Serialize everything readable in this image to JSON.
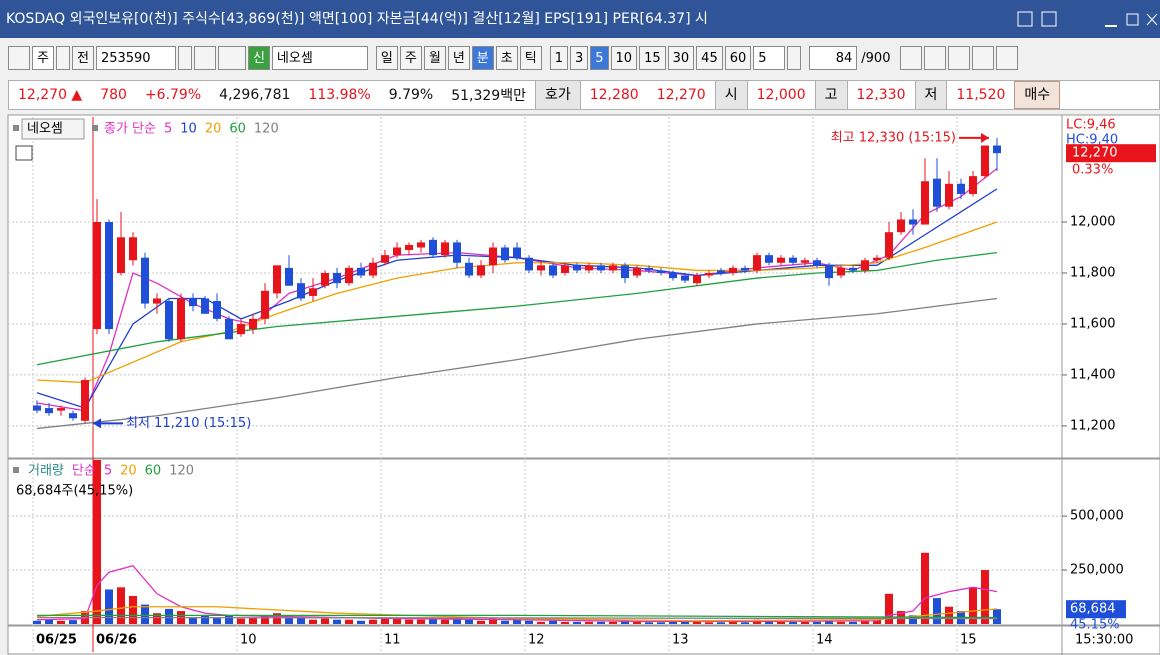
{
  "title_bar": {
    "text": "KOSDAQ 외국인보유[0(천)] 주식수[43,869(천)] 액면[100] 자본금[44(억)] 결산[12월] EPS[191] PER[64.37] 시"
  },
  "toolbar": {
    "market": "주",
    "kind": "전",
    "code": "253590",
    "badge": "신",
    "name": "네오셈",
    "periods": [
      "일",
      "주",
      "월",
      "년",
      "분",
      "초",
      "틱"
    ],
    "active_period": 4,
    "intervals": [
      "1",
      "3",
      "5",
      "10",
      "15",
      "30",
      "45",
      "60"
    ],
    "active_interval": 2,
    "multiplier": "5",
    "shown": "84",
    "total": "/900"
  },
  "quote": {
    "items": [
      {
        "text": "12,270 ▲",
        "kind": "up"
      },
      {
        "text": "780",
        "kind": "up"
      },
      {
        "text": "+6.79%",
        "kind": "up"
      },
      {
        "text": "4,296,781",
        "kind": "plain"
      },
      {
        "text": "113.98%",
        "kind": "up"
      },
      {
        "text": "9.79%",
        "kind": "plain"
      },
      {
        "text": "51,329백만",
        "kind": "plain"
      },
      {
        "text": "호가",
        "kind": "label"
      },
      {
        "text": "12,280",
        "kind": "up"
      },
      {
        "text": "12,270",
        "kind": "up"
      },
      {
        "text": "시",
        "kind": "label"
      },
      {
        "text": "12,000",
        "kind": "up"
      },
      {
        "text": "고",
        "kind": "label"
      },
      {
        "text": "12,330",
        "kind": "up"
      },
      {
        "text": "저",
        "kind": "label"
      },
      {
        "text": "11,520",
        "kind": "up"
      },
      {
        "text": "매수",
        "kind": "button"
      }
    ]
  },
  "chart_data": [
    {
      "type": "candlestick",
      "panel_label": "네오셈",
      "legend_prefix": "종가 단순",
      "up_color": "#e8141c",
      "down_color": "#1f4fd8",
      "categories": [
        "06/25",
        null,
        null,
        null,
        null,
        "06/26",
        null,
        null,
        null,
        null,
        null,
        null,
        null,
        null,
        null,
        null,
        null,
        "10",
        null,
        null,
        null,
        null,
        null,
        null,
        null,
        null,
        null,
        null,
        null,
        "11",
        null,
        null,
        null,
        null,
        null,
        null,
        null,
        null,
        null,
        null,
        null,
        "12",
        null,
        null,
        null,
        null,
        null,
        null,
        null,
        null,
        null,
        null,
        null,
        "13",
        null,
        null,
        null,
        null,
        null,
        null,
        null,
        null,
        null,
        null,
        null,
        "14",
        null,
        null,
        null,
        null,
        null,
        null,
        null,
        null,
        null,
        null,
        null,
        "15",
        null,
        null,
        null
      ],
      "open": [
        11280,
        11270,
        11260,
        11250,
        11220,
        11580,
        12000,
        11800,
        11850,
        11860,
        11680,
        11690,
        11540,
        11700,
        11700,
        11690,
        11620,
        11560,
        11580,
        11620,
        11720,
        11820,
        11760,
        11710,
        11750,
        11800,
        11760,
        11820,
        11790,
        11840,
        11870,
        11890,
        11900,
        11930,
        11870,
        11920,
        11840,
        11790,
        11830,
        11900,
        11900,
        11860,
        11810,
        11830,
        11800,
        11830,
        11810,
        11830,
        11810,
        11830,
        11790,
        11820,
        11810,
        11800,
        11790,
        11760,
        11790,
        11810,
        11800,
        11820,
        11810,
        11870,
        11840,
        11860,
        11840,
        11850,
        11830,
        11790,
        11820,
        11810,
        11850,
        11860,
        11960,
        12010,
        11990,
        12170,
        12060,
        12150,
        12110,
        12180,
        12300
      ],
      "high": [
        11300,
        11290,
        11280,
        11260,
        11390,
        12090,
        12010,
        12040,
        11960,
        11880,
        11720,
        11700,
        11720,
        11720,
        11710,
        11720,
        11630,
        11620,
        11640,
        11760,
        11830,
        11870,
        11780,
        11780,
        11810,
        11820,
        11830,
        11840,
        11860,
        11890,
        11920,
        11920,
        11930,
        11940,
        11930,
        11930,
        11860,
        11850,
        11920,
        11910,
        11920,
        11870,
        11850,
        11840,
        11840,
        11840,
        11840,
        11840,
        11840,
        11840,
        11830,
        11830,
        11820,
        11810,
        11800,
        11800,
        11810,
        11820,
        11830,
        11830,
        11880,
        11880,
        11870,
        11870,
        11860,
        11860,
        11840,
        11830,
        11830,
        11860,
        11870,
        12000,
        12040,
        12050,
        12250,
        12250,
        12200,
        12170,
        12200,
        12300,
        12330
      ],
      "low": [
        11250,
        11240,
        11240,
        11220,
        11210,
        11560,
        11560,
        11790,
        11830,
        11660,
        11640,
        11530,
        11530,
        11650,
        11640,
        11610,
        11540,
        11550,
        11560,
        11600,
        11700,
        11750,
        11690,
        11690,
        11740,
        11740,
        11750,
        11780,
        11780,
        11830,
        11860,
        11870,
        11880,
        11860,
        11860,
        11820,
        11780,
        11780,
        11800,
        11840,
        11850,
        11800,
        11790,
        11780,
        11790,
        11800,
        11800,
        11800,
        11800,
        11760,
        11780,
        11800,
        11790,
        11770,
        11760,
        11750,
        11780,
        11790,
        11790,
        11800,
        11800,
        11830,
        11830,
        11830,
        11830,
        11820,
        11750,
        11780,
        11800,
        11800,
        11840,
        11850,
        11950,
        11950,
        11990,
        12040,
        12050,
        12090,
        12100,
        12170,
        12200
      ],
      "close": [
        11260,
        11250,
        11270,
        11230,
        11380,
        12000,
        11580,
        11940,
        11940,
        11680,
        11700,
        11540,
        11700,
        11670,
        11640,
        11620,
        11540,
        11600,
        11620,
        11730,
        11830,
        11750,
        11700,
        11740,
        11800,
        11760,
        11820,
        11790,
        11840,
        11870,
        11900,
        11910,
        11920,
        11870,
        11920,
        11840,
        11790,
        11830,
        11900,
        11850,
        11860,
        11810,
        11830,
        11790,
        11830,
        11810,
        11830,
        11810,
        11830,
        11780,
        11820,
        11810,
        11800,
        11780,
        11770,
        11790,
        11800,
        11800,
        11820,
        11810,
        11870,
        11840,
        11860,
        11840,
        11850,
        11830,
        11780,
        11820,
        11810,
        11850,
        11860,
        11960,
        12010,
        11990,
        12160,
        12060,
        12150,
        12110,
        12180,
        12300,
        12270
      ],
      "series": [
        {
          "name": "5",
          "color": "#e030c0",
          "x": [
            0,
            4,
            6,
            8,
            10,
            13,
            16,
            18,
            21,
            25,
            30,
            35,
            40,
            45,
            50,
            55,
            60,
            65,
            68,
            71,
            74,
            77,
            80
          ],
          "values": [
            11290,
            11260,
            11480,
            11800,
            11760,
            11680,
            11620,
            11600,
            11720,
            11780,
            11870,
            11880,
            11860,
            11820,
            11810,
            11790,
            11820,
            11840,
            11810,
            11870,
            12030,
            12100,
            12210
          ]
        },
        {
          "name": "10",
          "color": "#2040d0",
          "x": [
            0,
            4,
            8,
            11,
            14,
            17,
            21,
            25,
            30,
            35,
            40,
            45,
            50,
            55,
            60,
            65,
            70,
            74,
            77,
            80
          ],
          "values": [
            11330,
            11270,
            11600,
            11700,
            11700,
            11620,
            11690,
            11770,
            11850,
            11870,
            11860,
            11830,
            11820,
            11790,
            11810,
            11830,
            11830,
            11950,
            12040,
            12130
          ]
        },
        {
          "name": "20",
          "color": "#f0a000",
          "x": [
            0,
            4,
            8,
            12,
            16,
            20,
            25,
            30,
            35,
            40,
            45,
            50,
            55,
            60,
            65,
            70,
            74,
            77,
            80
          ],
          "values": [
            11380,
            11370,
            11450,
            11530,
            11570,
            11640,
            11720,
            11780,
            11820,
            11840,
            11840,
            11830,
            11810,
            11810,
            11820,
            11840,
            11900,
            11950,
            12000
          ]
        },
        {
          "name": "60",
          "color": "#20a040",
          "x": [
            0,
            10,
            20,
            30,
            40,
            50,
            60,
            65,
            70,
            75,
            80
          ],
          "values": [
            11440,
            11530,
            11590,
            11630,
            11670,
            11720,
            11780,
            11800,
            11810,
            11850,
            11880
          ]
        },
        {
          "name": "120",
          "color": "#808080",
          "x": [
            0,
            10,
            20,
            30,
            40,
            50,
            60,
            70,
            75,
            80
          ],
          "values": [
            11190,
            11240,
            11310,
            11390,
            11460,
            11540,
            11600,
            11640,
            11670,
            11700
          ]
        }
      ],
      "ylim": [
        11078,
        12412
      ],
      "yticks": [
        {
          "value": 11200,
          "label": "11,200"
        },
        {
          "value": 11400,
          "label": "11,400"
        },
        {
          "value": 11600,
          "label": "11,600"
        },
        {
          "value": 11800,
          "label": "11,800"
        },
        {
          "value": 12000,
          "label": "12,000"
        }
      ],
      "annotations": [
        {
          "text": "최고 12,330 (15:15)",
          "x": 80,
          "y": 12330,
          "color": "#e8141c",
          "side": "left"
        },
        {
          "text": "최저 11,210 (15:15)",
          "x": 4,
          "y": 11210,
          "color": "#1f3fd0",
          "side": "right"
        }
      ],
      "side_labels": {
        "lc": "LC:9,46",
        "hc": "HC:9,40",
        "last": "12,270",
        "change": "0.33%"
      },
      "x_corner_label": "15:30:00"
    },
    {
      "type": "bar",
      "legend_label": "거래량",
      "legend_prefix": "단순",
      "info": "68,684주(45,15%)",
      "values": [
        15000,
        20000,
        15000,
        18000,
        60000,
        760000,
        160000,
        170000,
        130000,
        90000,
        50000,
        70000,
        60000,
        30000,
        40000,
        30000,
        40000,
        25000,
        30000,
        40000,
        50000,
        30000,
        30000,
        20000,
        25000,
        20000,
        20000,
        15000,
        20000,
        25000,
        30000,
        20000,
        20000,
        25000,
        20000,
        30000,
        20000,
        15000,
        25000,
        15000,
        20000,
        15000,
        10000,
        15000,
        10000,
        10000,
        10000,
        10000,
        10000,
        15000,
        10000,
        8000,
        8000,
        10000,
        10000,
        10000,
        8000,
        8000,
        10000,
        8000,
        20000,
        15000,
        10000,
        10000,
        10000,
        10000,
        20000,
        10000,
        10000,
        15000,
        20000,
        140000,
        60000,
        40000,
        330000,
        120000,
        80000,
        60000,
        170000,
        250000,
        68684
      ],
      "series": [
        {
          "name": "5",
          "color": "#e030c0",
          "x": [
            0,
            4,
            5,
            6,
            8,
            10,
            12,
            14,
            16,
            20,
            30,
            40,
            50,
            60,
            70,
            71,
            73,
            74,
            76,
            78,
            80
          ],
          "values": [
            20000,
            25000,
            180000,
            240000,
            270000,
            140000,
            80000,
            50000,
            40000,
            35000,
            25000,
            20000,
            12000,
            12000,
            15000,
            40000,
            60000,
            120000,
            150000,
            170000,
            150000
          ]
        },
        {
          "name": "20",
          "color": "#f0a000",
          "x": [
            0,
            5,
            8,
            15,
            25,
            40,
            55,
            70,
            74,
            80
          ],
          "values": [
            35000,
            60000,
            80000,
            80000,
            50000,
            25000,
            15000,
            20000,
            40000,
            70000
          ]
        },
        {
          "name": "60",
          "color": "#20a040",
          "x": [
            0,
            40,
            80
          ],
          "values": [
            40000,
            40000,
            30000
          ]
        },
        {
          "name": "120",
          "color": "#808080",
          "x": [
            0,
            40,
            80
          ],
          "values": [
            30000,
            28000,
            25000
          ]
        }
      ],
      "last_label": "68,684",
      "ratio_label": "45.15%",
      "ylim": [
        0,
        760000
      ],
      "yticks": [
        {
          "value": 250000,
          "label": "250,000"
        },
        {
          "value": 500000,
          "label": "500,000"
        }
      ]
    }
  ]
}
